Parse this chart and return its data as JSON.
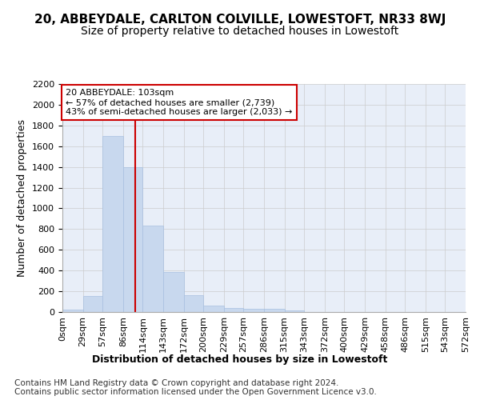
{
  "title_line1": "20, ABBEYDALE, CARLTON COLVILLE, LOWESTOFT, NR33 8WJ",
  "title_line2": "Size of property relative to detached houses in Lowestoft",
  "xlabel": "Distribution of detached houses by size in Lowestoft",
  "ylabel": "Number of detached properties",
  "bar_values": [
    20,
    155,
    1700,
    1400,
    830,
    385,
    165,
    65,
    40,
    30,
    30,
    15,
    0,
    0,
    0,
    0,
    0,
    0,
    0,
    0
  ],
  "bin_edges": [
    0,
    29,
    57,
    86,
    114,
    143,
    172,
    200,
    229,
    257,
    286,
    315,
    343,
    372,
    400,
    429,
    458,
    486,
    515,
    543,
    572
  ],
  "tick_labels": [
    "0sqm",
    "29sqm",
    "57sqm",
    "86sqm",
    "114sqm",
    "143sqm",
    "172sqm",
    "200sqm",
    "229sqm",
    "257sqm",
    "286sqm",
    "315sqm",
    "343sqm",
    "372sqm",
    "400sqm",
    "429sqm",
    "458sqm",
    "486sqm",
    "515sqm",
    "543sqm",
    "572sqm"
  ],
  "bar_color": "#c8d8ee",
  "bar_edge_color": "#a8c0e0",
  "vline_x": 103,
  "vline_color": "#cc0000",
  "annotation_text": "20 ABBEYDALE: 103sqm\n← 57% of detached houses are smaller (2,739)\n43% of semi-detached houses are larger (2,033) →",
  "annotation_box_color": "#ffffff",
  "annotation_box_edge": "#cc0000",
  "ylim": [
    0,
    2200
  ],
  "yticks": [
    0,
    200,
    400,
    600,
    800,
    1000,
    1200,
    1400,
    1600,
    1800,
    2000,
    2200
  ],
  "grid_color": "#cccccc",
  "bg_color": "#e8eef8",
  "footer_line1": "Contains HM Land Registry data © Crown copyright and database right 2024.",
  "footer_line2": "Contains public sector information licensed under the Open Government Licence v3.0.",
  "title_fontsize": 11,
  "subtitle_fontsize": 10,
  "axis_label_fontsize": 9,
  "tick_fontsize": 8,
  "footer_fontsize": 7.5
}
